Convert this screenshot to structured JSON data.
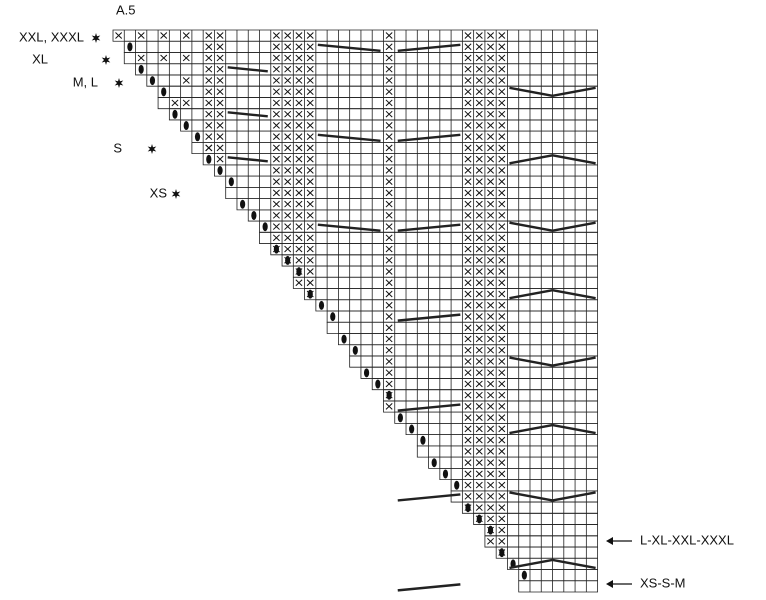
{
  "chart_title": "A.5",
  "size_labels": [
    "XXL, XXXL",
    "XL",
    "M, L",
    "S",
    "XS"
  ],
  "arrow_labels": [
    "L-XL-XXL-XXXL",
    "XS-S-M"
  ]
}
